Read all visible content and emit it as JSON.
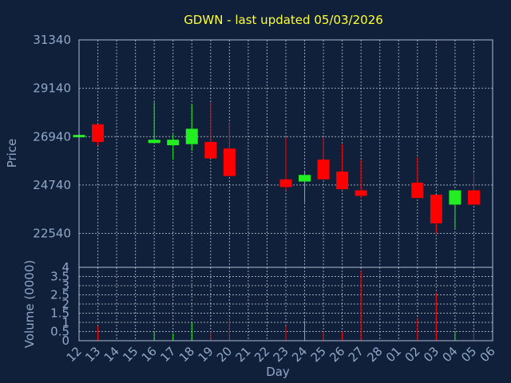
{
  "chart_data": {
    "type": "candlestick",
    "title": "GDWN - last updated 05/03/2026",
    "xlabel": "Day",
    "ylabel": "Price",
    "volume_label": "Volume (0000)",
    "grid": true,
    "colors": {
      "background": "#10203a",
      "up": "#22ee22",
      "down": "#ff0000",
      "title": "#ffff33",
      "axis_text": "#8fa8c8"
    },
    "x_ticks": [
      "12",
      "13",
      "14",
      "15",
      "16",
      "17",
      "18",
      "19",
      "20",
      "21",
      "22",
      "23",
      "24",
      "25",
      "26",
      "27",
      "28",
      "01",
      "02",
      "03",
      "04",
      "05",
      "06"
    ],
    "price_ticks": [
      "31340",
      "29140",
      "26940",
      "24740",
      "22540"
    ],
    "price_ylim": [
      21000,
      31340
    ],
    "volume_ticks": [
      "4",
      "3.5",
      "3",
      "2.5",
      "2",
      "1.5",
      "1",
      "0.5",
      "0"
    ],
    "volume_ylim": [
      0,
      4
    ],
    "candles": [
      {
        "day": "12",
        "open": 26940,
        "close": 27020,
        "high": 27020,
        "low": 26940,
        "volume": 0.0
      },
      {
        "day": "13",
        "open": 27500,
        "close": 26700,
        "high": 27500,
        "low": 26550,
        "volume": 0.8
      },
      {
        "day": "16",
        "open": 26650,
        "close": 26800,
        "high": 28500,
        "low": 26650,
        "volume": 0.5
      },
      {
        "day": "17",
        "open": 26550,
        "close": 26800,
        "high": 27050,
        "low": 25900,
        "volume": 0.4
      },
      {
        "day": "18",
        "open": 26600,
        "close": 27300,
        "high": 28400,
        "low": 26300,
        "volume": 1.0
      },
      {
        "day": "19",
        "open": 26700,
        "close": 25950,
        "high": 28500,
        "low": 25950,
        "volume": 0.5
      },
      {
        "day": "20",
        "open": 26400,
        "close": 25150,
        "high": 27600,
        "low": 25150,
        "volume": 1.2
      },
      {
        "day": "23",
        "open": 25000,
        "close": 24650,
        "high": 26900,
        "low": 24500,
        "volume": 0.8
      },
      {
        "day": "24",
        "open": 24900,
        "close": 25200,
        "high": 25400,
        "low": 23950,
        "volume": 1.1
      },
      {
        "day": "25",
        "open": 25900,
        "close": 25000,
        "high": 26900,
        "low": 25000,
        "volume": 0.5
      },
      {
        "day": "26",
        "open": 25350,
        "close": 24550,
        "high": 26600,
        "low": 24550,
        "volume": 0.5
      },
      {
        "day": "27",
        "open": 24500,
        "close": 24250,
        "high": 25900,
        "low": 24150,
        "volume": 3.8
      },
      {
        "day": "02",
        "open": 24850,
        "close": 24150,
        "high": 26000,
        "low": 24150,
        "volume": 1.2
      },
      {
        "day": "03",
        "open": 24300,
        "close": 23000,
        "high": 24300,
        "low": 22550,
        "volume": 2.6
      },
      {
        "day": "04",
        "open": 23850,
        "close": 24500,
        "high": 24500,
        "low": 22750,
        "volume": 0.5
      },
      {
        "day": "05",
        "open": 24500,
        "close": 23850,
        "high": 25300,
        "low": 23850,
        "volume": 0.6
      }
    ]
  }
}
